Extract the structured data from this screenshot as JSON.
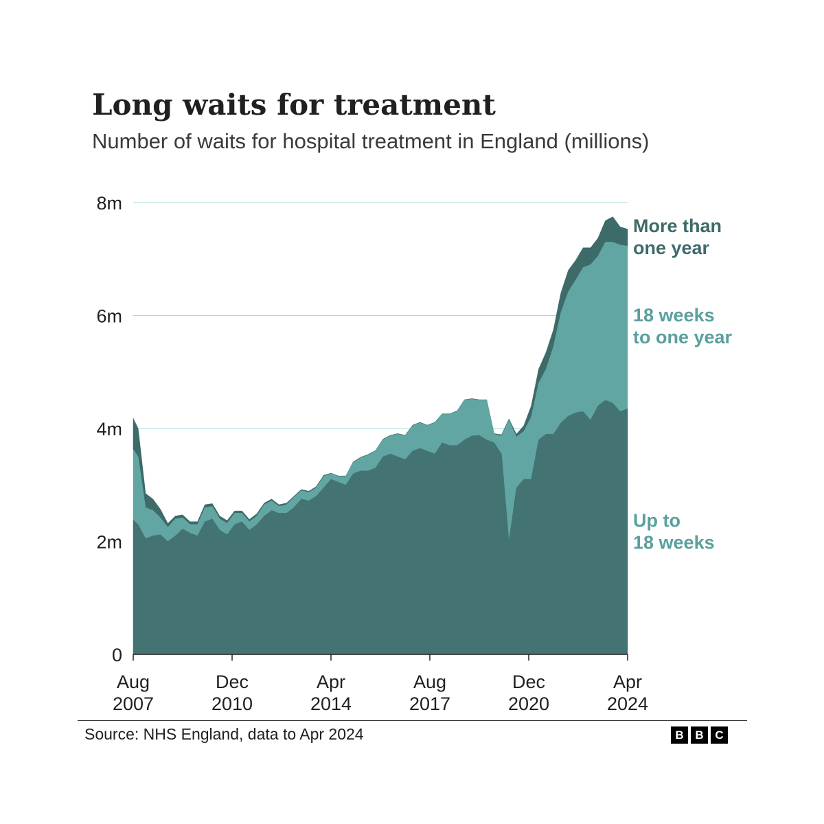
{
  "title": "Long waits for treatment",
  "subtitle": "Number of waits for hospital treatment in England (millions)",
  "source": "Source: NHS England, data to Apr 2024",
  "logo": [
    "B",
    "B",
    "C"
  ],
  "colors": {
    "up_to_18_weeks": "#437373",
    "weeks_18_to_one_year": "#62a6a3",
    "more_than_one_year": "#3d6b69",
    "gridline": "#a8dcdc",
    "label_dark": "#3d6b69",
    "label_light": "#5aa09d",
    "text": "#202020"
  },
  "chart_data": {
    "type": "area",
    "stacked": true,
    "x": [
      "2007-08",
      "2007-10",
      "2008-01",
      "2008-04",
      "2008-07",
      "2008-10",
      "2009-01",
      "2009-04",
      "2009-07",
      "2009-10",
      "2010-01",
      "2010-04",
      "2010-07",
      "2010-10",
      "2011-01",
      "2011-04",
      "2011-07",
      "2011-10",
      "2012-01",
      "2012-04",
      "2012-07",
      "2012-10",
      "2013-01",
      "2013-04",
      "2013-07",
      "2013-10",
      "2014-01",
      "2014-04",
      "2014-07",
      "2014-10",
      "2015-01",
      "2015-04",
      "2015-07",
      "2015-10",
      "2016-01",
      "2016-04",
      "2016-07",
      "2016-10",
      "2017-01",
      "2017-04",
      "2017-07",
      "2017-10",
      "2018-01",
      "2018-04",
      "2018-07",
      "2018-10",
      "2019-01",
      "2019-04",
      "2019-07",
      "2019-10",
      "2020-01",
      "2020-04",
      "2020-07",
      "2020-10",
      "2021-01",
      "2021-04",
      "2021-07",
      "2021-10",
      "2022-01",
      "2022-04",
      "2022-07",
      "2022-10",
      "2023-01",
      "2023-04",
      "2023-07",
      "2023-10",
      "2024-01",
      "2024-04"
    ],
    "series": [
      {
        "name": "Up to 18 weeks",
        "values": [
          2.38,
          2.3,
          2.05,
          2.1,
          2.12,
          2.0,
          2.1,
          2.22,
          2.15,
          2.1,
          2.35,
          2.4,
          2.2,
          2.12,
          2.3,
          2.35,
          2.2,
          2.3,
          2.45,
          2.55,
          2.5,
          2.5,
          2.6,
          2.75,
          2.72,
          2.8,
          2.95,
          3.1,
          3.05,
          3.0,
          3.2,
          3.25,
          3.25,
          3.3,
          3.5,
          3.55,
          3.5,
          3.45,
          3.6,
          3.65,
          3.6,
          3.55,
          3.75,
          3.7,
          3.7,
          3.8,
          3.87,
          3.88,
          3.8,
          3.75,
          3.55,
          2.0,
          2.95,
          3.1,
          3.1,
          3.8,
          3.9,
          3.9,
          4.1,
          4.22,
          4.28,
          4.3,
          4.15,
          4.4,
          4.5,
          4.45,
          4.3,
          4.35
        ]
      },
      {
        "name": "18 weeks to one year",
        "values": [
          1.25,
          1.2,
          0.55,
          0.45,
          0.3,
          0.25,
          0.3,
          0.2,
          0.15,
          0.2,
          0.25,
          0.22,
          0.2,
          0.2,
          0.2,
          0.15,
          0.15,
          0.15,
          0.2,
          0.17,
          0.12,
          0.15,
          0.18,
          0.15,
          0.15,
          0.15,
          0.2,
          0.1,
          0.1,
          0.15,
          0.2,
          0.23,
          0.28,
          0.3,
          0.3,
          0.32,
          0.4,
          0.42,
          0.45,
          0.45,
          0.45,
          0.55,
          0.5,
          0.55,
          0.6,
          0.7,
          0.65,
          0.62,
          0.7,
          0.15,
          0.32,
          2.15,
          0.9,
          0.85,
          1.1,
          1.0,
          1.15,
          1.55,
          1.95,
          2.2,
          2.35,
          2.55,
          2.75,
          2.65,
          2.8,
          2.85,
          2.95,
          2.88
        ]
      },
      {
        "name": "More than one year",
        "values": [
          0.55,
          0.5,
          0.25,
          0.2,
          0.15,
          0.07,
          0.05,
          0.05,
          0.05,
          0.05,
          0.05,
          0.05,
          0.05,
          0.05,
          0.04,
          0.04,
          0.04,
          0.04,
          0.03,
          0.03,
          0.03,
          0.03,
          0.02,
          0.02,
          0.02,
          0.02,
          0.02,
          0.01,
          0.01,
          0.01,
          0.01,
          0.01,
          0.01,
          0.01,
          0.01,
          0.01,
          0.01,
          0.01,
          0.01,
          0.01,
          0.01,
          0.01,
          0.01,
          0.01,
          0.01,
          0.01,
          0.01,
          0.01,
          0.01,
          0.01,
          0.02,
          0.02,
          0.05,
          0.1,
          0.2,
          0.25,
          0.3,
          0.3,
          0.35,
          0.38,
          0.35,
          0.35,
          0.3,
          0.32,
          0.38,
          0.45,
          0.32,
          0.3
        ]
      }
    ],
    "ylim": [
      0,
      8
    ],
    "yticks": [
      0,
      2,
      4,
      6,
      8
    ],
    "ytick_labels": [
      "0",
      "2m",
      "4m",
      "6m",
      "8m"
    ],
    "xtick_dates": [
      "2007-08",
      "2010-12",
      "2014-04",
      "2017-08",
      "2020-12",
      "2024-04"
    ],
    "xtick_labels": [
      [
        "Aug",
        "2007"
      ],
      [
        "Dec",
        "2010"
      ],
      [
        "Apr",
        "2014"
      ],
      [
        "Aug",
        "2017"
      ],
      [
        "Dec",
        "2020"
      ],
      [
        "Apr",
        "2024"
      ]
    ],
    "series_labels": [
      [
        "More than",
        "one year"
      ],
      [
        "18 weeks",
        "to one year"
      ],
      [
        "Up to",
        "18 weeks"
      ]
    ],
    "grid": true,
    "legend": "direct labels at right"
  }
}
